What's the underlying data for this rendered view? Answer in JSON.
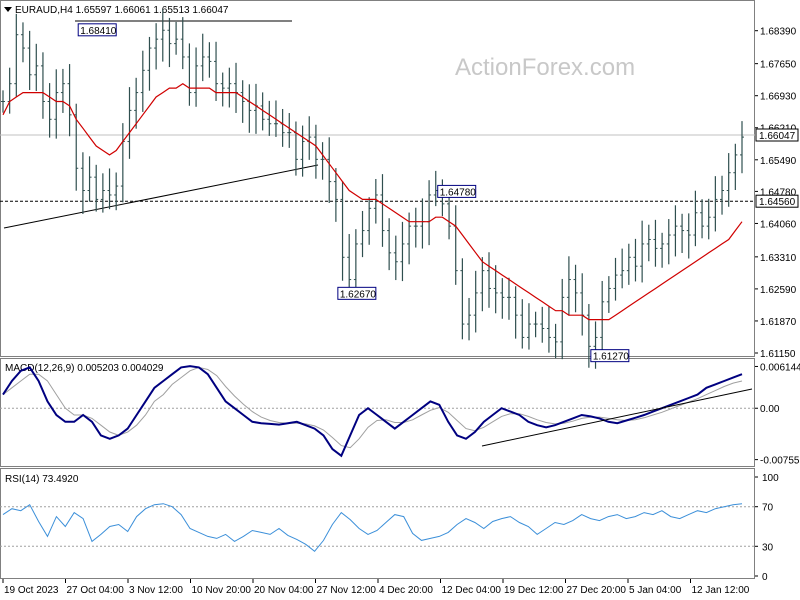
{
  "watermark": "ActionForex.com",
  "colors": {
    "price": "#2f4f4f",
    "ma": "#d00000",
    "macd": "#000080",
    "signal": "#a0a0a0",
    "rsi": "#3b8fd9",
    "box": "#000080"
  },
  "chart_data": [
    {
      "type": "line",
      "header": "EURAUD,H4  1.65597 1.66061 1.65513 1.66047",
      "ylim": [
        1.6115,
        1.689
      ],
      "yticks": [
        "1.68390",
        "1.67650",
        "1.66930",
        "1.66210",
        "1.65490",
        "1.64780",
        "1.64060",
        "1.63310",
        "1.62590",
        "1.61870",
        "1.61150"
      ],
      "last_price_label": "1.66047",
      "last_price": 1.66047,
      "hline_label": "1.64560",
      "hline_value": 1.6456,
      "annotations": [
        {
          "text": "1.68410",
          "x": 14,
          "y": 1.6841
        },
        {
          "text": "1.62670",
          "x": 53,
          "y": 1.6267
        },
        {
          "text": "1.64780",
          "x": 68,
          "y": 1.6478
        },
        {
          "text": "1.61270",
          "x": 91,
          "y": 1.6127
        }
      ],
      "price": [
        1.668,
        1.672,
        1.683,
        1.68,
        1.674,
        1.676,
        1.668,
        1.664,
        1.67,
        1.672,
        1.665,
        1.653,
        1.648,
        1.651,
        1.646,
        1.648,
        1.647,
        1.649,
        1.659,
        1.666,
        1.67,
        1.675,
        1.68,
        1.682,
        1.684,
        1.681,
        1.682,
        1.678,
        1.67,
        1.676,
        1.678,
        1.677,
        1.672,
        1.671,
        1.672,
        1.67,
        1.668,
        1.666,
        1.667,
        1.664,
        1.663,
        1.663,
        1.661,
        1.661,
        1.655,
        1.659,
        1.66,
        1.655,
        1.655,
        1.65,
        1.646,
        1.633,
        1.628,
        1.636,
        1.639,
        1.644,
        1.647,
        1.639,
        1.634,
        1.632,
        1.636,
        1.64,
        1.64,
        1.641,
        1.647,
        1.648,
        1.645,
        1.64,
        1.63,
        1.618,
        1.62,
        1.625,
        1.63,
        1.626,
        1.625,
        1.624,
        1.624,
        1.62,
        1.615,
        1.618,
        1.618,
        1.617,
        1.615,
        1.614,
        1.624,
        1.628,
        1.625,
        1.62,
        1.613,
        1.615,
        1.623,
        1.626,
        1.629,
        1.63,
        1.633,
        1.631,
        1.636,
        1.637,
        1.635,
        1.636,
        1.638,
        1.64,
        1.639,
        1.638,
        1.643,
        1.64,
        1.642,
        1.646,
        1.648,
        1.652,
        1.656,
        1.66
      ],
      "ma": [
        1.665,
        1.668,
        1.669,
        1.67,
        1.67,
        1.67,
        1.67,
        1.669,
        1.668,
        1.668,
        1.667,
        1.664,
        1.662,
        1.66,
        1.658,
        1.657,
        1.656,
        1.657,
        1.659,
        1.661,
        1.663,
        1.665,
        1.667,
        1.669,
        1.67,
        1.671,
        1.671,
        1.672,
        1.671,
        1.671,
        1.671,
        1.671,
        1.67,
        1.67,
        1.67,
        1.67,
        1.669,
        1.668,
        1.667,
        1.666,
        1.665,
        1.664,
        1.663,
        1.662,
        1.661,
        1.66,
        1.659,
        1.658,
        1.656,
        1.654,
        1.652,
        1.65,
        1.648,
        1.647,
        1.646,
        1.646,
        1.646,
        1.645,
        1.644,
        1.643,
        1.642,
        1.641,
        1.641,
        1.641,
        1.641,
        1.642,
        1.642,
        1.641,
        1.64,
        1.638,
        1.636,
        1.634,
        1.632,
        1.631,
        1.63,
        1.629,
        1.628,
        1.627,
        1.626,
        1.625,
        1.624,
        1.623,
        1.622,
        1.621,
        1.621,
        1.62,
        1.62,
        1.62,
        1.619,
        1.619,
        1.619,
        1.619,
        1.62,
        1.621,
        1.622,
        1.623,
        1.624,
        1.625,
        1.626,
        1.627,
        1.628,
        1.629,
        1.63,
        1.631,
        1.632,
        1.633,
        1.634,
        1.635,
        1.636,
        1.637,
        1.639,
        1.641
      ]
    },
    {
      "type": "line",
      "header": "MACD(12,26,9) 0.005203 0.004029",
      "ylim": [
        -0.0082,
        0.0068
      ],
      "yticks": [
        "0.006144",
        "0.00",
        "-0.007555"
      ],
      "yticks_values": [
        0.006144,
        0.0,
        -0.007555
      ],
      "macd": [
        0.002,
        0.004,
        0.0055,
        0.006,
        0.004,
        0.001,
        -0.001,
        -0.002,
        -0.002,
        -0.001,
        -0.002,
        -0.004,
        -0.0045,
        -0.004,
        -0.003,
        -0.001,
        0.001,
        0.003,
        0.004,
        0.005,
        0.006,
        0.0062,
        0.006,
        0.005,
        0.003,
        0.001,
        0.0,
        -0.001,
        -0.002,
        -0.0022,
        -0.0023,
        -0.0024,
        -0.0022,
        -0.002,
        -0.0025,
        -0.003,
        -0.004,
        -0.006,
        -0.007,
        -0.004,
        -0.001,
        0.0,
        -0.001,
        -0.002,
        -0.003,
        -0.002,
        -0.001,
        0.0,
        0.001,
        0.0005,
        -0.002,
        -0.004,
        -0.0045,
        -0.0035,
        -0.002,
        -0.001,
        0.0,
        -0.0005,
        -0.001,
        -0.002,
        -0.0025,
        -0.0028,
        -0.0025,
        -0.002,
        -0.0015,
        -0.001,
        -0.0012,
        -0.0015,
        -0.002,
        -0.0022,
        -0.0018,
        -0.0014,
        -0.001,
        -0.0005,
        0.0,
        0.0005,
        0.001,
        0.0015,
        0.002,
        0.003,
        0.0035,
        0.004,
        0.0045,
        0.005
      ],
      "signal": [
        0.002,
        0.003,
        0.004,
        0.005,
        0.005,
        0.004,
        0.002,
        0.0,
        -0.001,
        -0.001,
        -0.0015,
        -0.0025,
        -0.0035,
        -0.004,
        -0.0035,
        -0.0025,
        -0.001,
        0.001,
        0.002,
        0.0035,
        0.0045,
        0.0055,
        0.006,
        0.0057,
        0.0048,
        0.0032,
        0.0018,
        0.0006,
        -0.0005,
        -0.0013,
        -0.0018,
        -0.0021,
        -0.0022,
        -0.0022,
        -0.0023,
        -0.0026,
        -0.0032,
        -0.0043,
        -0.0055,
        -0.0058,
        -0.0045,
        -0.0028,
        -0.0018,
        -0.0017,
        -0.0021,
        -0.0021,
        -0.0017,
        -0.001,
        -0.0003,
        0.0001,
        -0.0006,
        -0.0018,
        -0.003,
        -0.0033,
        -0.0028,
        -0.002,
        -0.0012,
        -0.0008,
        -0.0008,
        -0.0012,
        -0.0017,
        -0.0021,
        -0.0023,
        -0.0022,
        -0.0019,
        -0.0015,
        -0.0013,
        -0.0013,
        -0.0015,
        -0.0017,
        -0.0018,
        -0.0017,
        -0.0014,
        -0.001,
        -0.0006,
        -0.0001,
        0.0004,
        0.0009,
        0.0014,
        0.002,
        0.0026,
        0.0032,
        0.0037,
        0.004
      ]
    },
    {
      "type": "line",
      "header": "RSI(14) 73.4920",
      "ylim": [
        0,
        100
      ],
      "yticks": [
        "100",
        "70",
        "30",
        "0"
      ],
      "yticks_values": [
        100,
        70,
        30,
        0
      ],
      "rsi": [
        62,
        68,
        66,
        72,
        55,
        40,
        60,
        50,
        64,
        58,
        35,
        42,
        50,
        52,
        45,
        60,
        68,
        72,
        73,
        70,
        62,
        48,
        44,
        40,
        38,
        42,
        35,
        40,
        46,
        44,
        42,
        48,
        41,
        37,
        32,
        25,
        36,
        52,
        64,
        57,
        48,
        42,
        46,
        54,
        62,
        60,
        43,
        36,
        38,
        40,
        44,
        52,
        58,
        54,
        48,
        55,
        58,
        60,
        54,
        50,
        42,
        48,
        54,
        52,
        56,
        62,
        58,
        56,
        60,
        62,
        58,
        60,
        64,
        62,
        66,
        60,
        58,
        62,
        66,
        64,
        68,
        70,
        72,
        73
      ]
    }
  ],
  "xaxis": {
    "labels": [
      "19 Oct 2023",
      "27 Oct 04:00",
      "3 Nov 12:00",
      "10 Nov 20:00",
      "20 Nov 04:00",
      "27 Nov 12:00",
      "4 Dec 20:00",
      "12 Dec 04:00",
      "19 Dec 12:00",
      "27 Dec 20:00",
      "5 Jan 04:00",
      "12 Jan 12:00"
    ]
  }
}
